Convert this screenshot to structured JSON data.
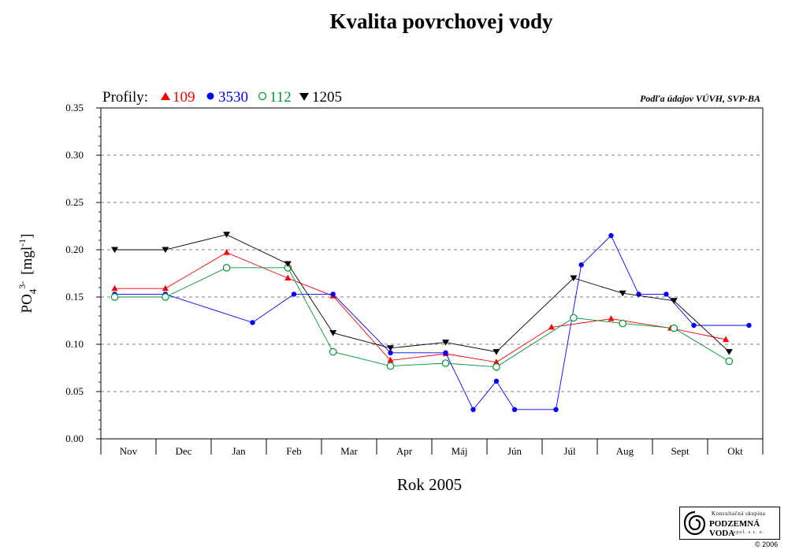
{
  "title": "Kvalita povrchovej vody",
  "source_note": "Podľa údajov VÚVH, SVP-BA",
  "legend": {
    "prefix": "Profily:",
    "items": [
      {
        "label": "109",
        "color": "#ff0000",
        "marker": "triangle-up"
      },
      {
        "label": "3530",
        "color": "#0000ff",
        "marker": "circle-filled"
      },
      {
        "label": "112",
        "color": "#009933",
        "marker": "circle-open"
      },
      {
        "label": "1205",
        "color": "#000000",
        "marker": "triangle-down"
      }
    ]
  },
  "logo": {
    "line1": "Konzultačná skupina",
    "line2": "PODZEMNÁ VODA",
    "line3": "spol. s r. o.",
    "copyright": "© 2006"
  },
  "chart_data": {
    "type": "line",
    "title": "Kvalita povrchovej vody",
    "xlabel": "Rok 2005",
    "ylabel": "PO4 3- [mgl-1]",
    "ylabel_parts": {
      "base": "PO",
      "sub": "4",
      "sup": "3-",
      "unit_open": "[mgl",
      "unit_sup": "-1",
      "unit_close": "]"
    },
    "x_range": [
      0,
      12
    ],
    "ylim": [
      0,
      0.35
    ],
    "y_ticks": [
      "0.00",
      "0.05",
      "0.10",
      "0.15",
      "0.20",
      "0.25",
      "0.30",
      "0.35"
    ],
    "y_tick_values": [
      0,
      0.05,
      0.1,
      0.15,
      0.2,
      0.25,
      0.3,
      0.35
    ],
    "categories": [
      "Nov",
      "Dec",
      "Jan",
      "Feb",
      "Mar",
      "Apr",
      "Máj",
      "Jún",
      "Júl",
      "Aug",
      "Sept",
      "Okt"
    ],
    "grid": "horizontal-dashed",
    "legend_position": "top-left",
    "series": [
      {
        "name": "109",
        "color": "#ff0000",
        "marker": "triangle-up",
        "x": [
          0.25,
          1.17,
          2.28,
          3.39,
          4.21,
          5.25,
          6.25,
          7.17,
          8.17,
          9.25,
          10.33,
          11.33
        ],
        "y": [
          0.159,
          0.159,
          0.197,
          0.17,
          0.151,
          0.083,
          0.09,
          0.081,
          0.118,
          0.127,
          0.117,
          0.105
        ]
      },
      {
        "name": "3530",
        "color": "#0000ff",
        "marker": "circle-filled",
        "x": [
          0.25,
          1.17,
          2.75,
          3.5,
          4.21,
          5.25,
          6.25,
          6.75,
          7.17,
          7.5,
          8.25,
          8.71,
          9.25,
          9.75,
          10.25,
          10.75,
          11.75
        ],
        "y": [
          0.153,
          0.153,
          0.123,
          0.153,
          0.153,
          0.091,
          0.091,
          0.031,
          0.061,
          0.031,
          0.031,
          0.184,
          0.215,
          0.153,
          0.153,
          0.12,
          0.12
        ]
      },
      {
        "name": "112",
        "color": "#009933",
        "marker": "circle-open",
        "x": [
          0.25,
          1.17,
          2.28,
          3.39,
          4.21,
          5.25,
          6.25,
          7.17,
          8.57,
          9.46,
          10.39,
          11.39
        ],
        "y": [
          0.15,
          0.15,
          0.181,
          0.181,
          0.092,
          0.077,
          0.08,
          0.076,
          0.128,
          0.122,
          0.117,
          0.082
        ]
      },
      {
        "name": "1205",
        "color": "#000000",
        "marker": "triangle-down",
        "x": [
          0.25,
          1.17,
          2.28,
          3.39,
          4.21,
          5.25,
          6.25,
          7.17,
          8.57,
          9.46,
          10.39,
          11.39
        ],
        "y": [
          0.2,
          0.2,
          0.216,
          0.185,
          0.112,
          0.096,
          0.102,
          0.092,
          0.17,
          0.154,
          0.146,
          0.092
        ]
      }
    ]
  }
}
